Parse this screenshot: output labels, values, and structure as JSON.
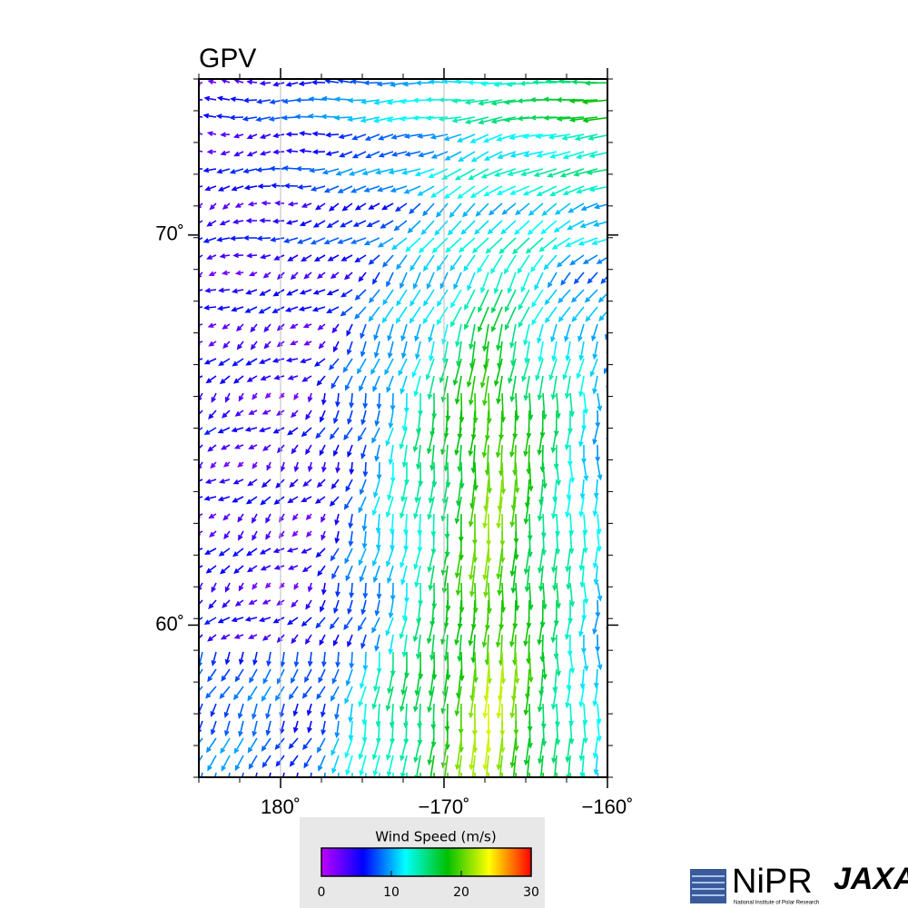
{
  "map": {
    "title": "GPV",
    "lonlim": [
      -185,
      -160
    ],
    "latlim": [
      56.1,
      74
    ],
    "lonticks": [
      {
        "value": -180,
        "label": "180˚"
      },
      {
        "value": -170,
        "label": "−170˚"
      },
      {
        "value": -160,
        "label": "−160˚"
      }
    ],
    "latticks": [
      {
        "value": 70,
        "label": "70˚"
      },
      {
        "value": 60,
        "label": "60˚"
      }
    ],
    "colorbar": {
      "title": "Wind Speed (m/s)",
      "lim": [
        0,
        30
      ],
      "ticks": [
        0,
        10,
        20,
        30
      ],
      "colors": [
        "#c000ff",
        "#0000ff",
        "#00ffff",
        "#00c000",
        "#ffff00",
        "#ff0000"
      ]
    },
    "logos": {
      "nipr": "NiPR",
      "nipr_sub": "National Institute of Polar Research",
      "jaxa": "JAXA"
    }
  }
}
